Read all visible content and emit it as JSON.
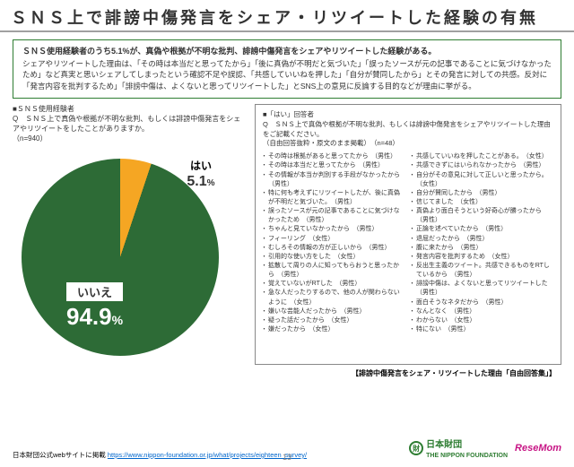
{
  "title": "ＳＮＳ上で誹謗中傷発言をシェア・リツイートした経験の有無",
  "summary": {
    "lead": "ＳＮＳ使用経験者のうち5.1%が、真偽や根拠が不明な批判、誹謗中傷発言をシェアやリツイートした経験がある。",
    "body": "シェアやリツイートした理由は、「その時は本当だと思ってたから」「後に真偽が不明だと気づいた」「誤ったソースが元の記事であることに気づけなかったため」など真実と思いシェアしてしまったという確認不足や誤認、「共感していいねを押した」「自分が賛同したから」とその発言に対しての共感。反対に「発言内容を批判するため」「誹謗中傷は、よくないと思ってリツイートした」とSNS上の意見に反論する目的などが理由に挙がる。"
  },
  "left_q": {
    "segment": "■ＳＮＳ使用経験者",
    "q": "Q　ＳＮＳ上で真偽や根拠が不明な批判、もしくは誹謗中傷発言をシェアやリツイートをしたことがありますか。",
    "n": "（n=940）"
  },
  "pie": {
    "type": "pie",
    "values": [
      5.1,
      94.9
    ],
    "labels": [
      "はい",
      "いいえ"
    ],
    "colors": [
      "#f5a623",
      "#2d6b36"
    ],
    "background": "#ffffff",
    "yes_pct": "5.1",
    "no_pct": "94.9"
  },
  "right_q": {
    "segment": "■「はい」回答者",
    "q": "Q　ＳＮＳ上で真偽や根拠が不明な批判、もしくは誹謗中傷発言をシェアやリツイートした理由をご記載ください。",
    "note": "（自由回答抜粋・原文のまま掲載）",
    "n": "（n=48）"
  },
  "reasons_left": [
    "その時は根拠があると思ってたから　（男性）",
    "その時は本当だと思ってたから　（男性）",
    "その情報が本当か判別する手段がなかったから　（男性）",
    "特に何も考えずにリツイートしたが、後に真偽が不明だと気づいた。　（男性）",
    "誤ったソースが元の記事であることに気づけなかったため　（男性）",
    "ちゃんと見ていなかったから　（男性）",
    "フィーリング　（女性）",
    "むしろその情報の方が正しいから　（男性）",
    "引用的な使い方をした　（女性）",
    "拡散して周りの人に知ってもらおうと思ったから　（男性）",
    "覚えていないがRTした　（男性）",
    "急な人だったりするので、他の人が関わらないように　（女性）",
    "嫌いな芸能人だったから　（男性）",
    "疑った話だったから　（女性）",
    "嫌だったから　（女性）"
  ],
  "reasons_right": [
    "共感していいねを押したことがある。　（女性）",
    "共感できずにはいられなかったから　（男性）",
    "自分がその意見に対して正しいと思ったから。（女性）",
    "自分が賛同したから　（男性）",
    "信じてました　（女性）",
    "真偽より面白そうという好奇心が勝ったから　（男性）",
    "正論を述べていたから　（男性）",
    "退屈だったから　（男性）",
    "腹に来たから　（男性）",
    "発言内容を批判するため　（女性）",
    "反出生主義のツイート。共感できるものをRTしているから　（男性）",
    "誹謗中傷は、よくないと思ってリツイートした　（男性）",
    "面白そうなネタだから　（男性）",
    "なんとなく　（男性）",
    "わからない　（女性）",
    "特にない　（男性）"
  ],
  "caption": "【誹謗中傷発言をシェア・リツイートした理由「自由回答集」】",
  "footer": {
    "src_label": "日本財団公式webサイトに掲載",
    "src_url": "https://www.nippon-foundation.or.jp/what/projects/eighteen_survey/",
    "nf_jp": "日本財団",
    "nf_en": "THE NIPPON FOUNDATION",
    "resemom": "ReseMom"
  },
  "pagenum": "13"
}
